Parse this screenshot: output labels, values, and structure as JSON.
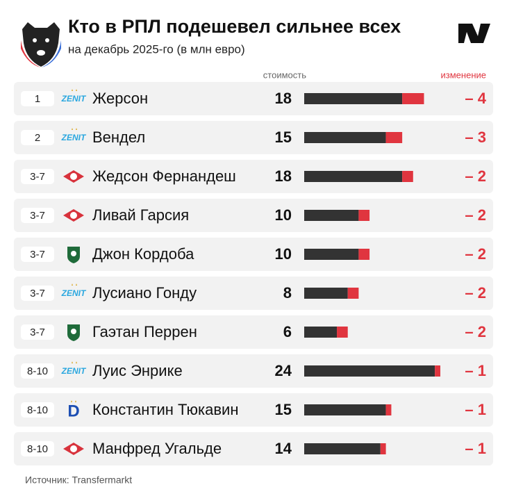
{
  "chart_data": {
    "type": "bar",
    "title": "Кто в РПЛ подешевел сильнее всех",
    "subtitle": "на декабрь 2025-го (в млн евро)",
    "source": "Источник: Transfermarkt",
    "ranks": [
      "1",
      "2",
      "3-7",
      "3-7",
      "3-7",
      "3-7",
      "3-7",
      "8-10",
      "8-10",
      "8-10"
    ],
    "categories": [
      "Жерсон",
      "Вендел",
      "Жедсон Фернандеш",
      "Ливай Гарсия",
      "Джон Кордоба",
      "Лусиано Гонду",
      "Гаэтан Перрен",
      "Луис Энрике",
      "Константин Тюкавин",
      "Манфред Угальде"
    ],
    "series": [
      {
        "name": "стоимость",
        "color": "#333333",
        "values": [
          18,
          15,
          18,
          10,
          10,
          8,
          6,
          24,
          15,
          14
        ]
      },
      {
        "name": "изменение",
        "color": "#e0353f",
        "values": [
          -4,
          -3,
          -2,
          -2,
          -2,
          -2,
          -2,
          -1,
          -1,
          -1
        ],
        "value_labels": [
          "– 4",
          "– 3",
          "– 2",
          "– 2",
          "– 2",
          "– 2",
          "– 2",
          "– 1",
          "– 1",
          "– 1"
        ]
      }
    ],
    "xlim": [
      0,
      25
    ]
  }
}
